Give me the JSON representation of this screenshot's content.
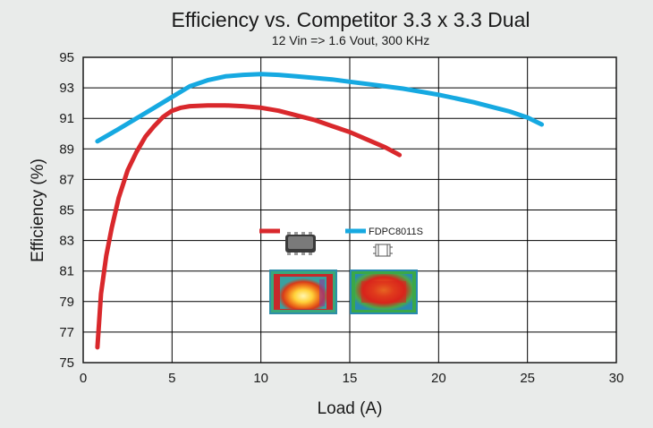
{
  "chart_data": {
    "type": "line",
    "title": "Efficiency vs. Competitor 3.3 x 3.3 Dual",
    "subtitle": "12 Vin => 1.6 Vout, 300 KHz",
    "xlabel": "Load (A)",
    "ylabel": "Efficiency (%)",
    "xlim": [
      0,
      30
    ],
    "ylim": [
      75,
      95
    ],
    "xticks": [
      0,
      5,
      10,
      15,
      20,
      25,
      30
    ],
    "yticks": [
      75,
      77,
      79,
      81,
      83,
      85,
      87,
      89,
      91,
      93,
      95
    ],
    "grid": true,
    "legend_position": "center",
    "series": [
      {
        "name": "",
        "color": "#d9282c",
        "icon": "competitor-package-icon",
        "x": [
          0.8,
          1.0,
          1.3,
          1.6,
          2.0,
          2.5,
          3.0,
          3.5,
          4.0,
          4.5,
          5.0,
          5.5,
          6.0,
          7.0,
          8.0,
          9.0,
          10.0,
          11.0,
          12.0,
          13.0,
          14.0,
          15.0,
          16.0,
          17.0,
          17.8
        ],
        "y": [
          76.0,
          79.5,
          82.0,
          83.8,
          85.8,
          87.6,
          88.8,
          89.8,
          90.5,
          91.1,
          91.5,
          91.7,
          91.8,
          91.85,
          91.85,
          91.8,
          91.7,
          91.5,
          91.2,
          90.9,
          90.5,
          90.1,
          89.6,
          89.1,
          88.6
        ]
      },
      {
        "name": "FDPC8011S",
        "color": "#16a9e1",
        "icon": "fdpc-package-icon",
        "x": [
          0.8,
          2.0,
          3.0,
          4.0,
          5.0,
          6.0,
          7.0,
          8.0,
          9.0,
          10.0,
          11.0,
          12.0,
          13.0,
          14.0,
          15.0,
          16.0,
          17.0,
          18.0,
          19.0,
          20.0,
          21.0,
          22.0,
          23.0,
          24.0,
          25.0,
          25.8
        ],
        "y": [
          89.5,
          90.3,
          91.0,
          91.7,
          92.4,
          93.1,
          93.5,
          93.75,
          93.85,
          93.9,
          93.85,
          93.75,
          93.65,
          93.55,
          93.4,
          93.25,
          93.1,
          92.95,
          92.75,
          92.55,
          92.3,
          92.05,
          91.75,
          91.45,
          91.05,
          90.6
        ]
      }
    ]
  }
}
